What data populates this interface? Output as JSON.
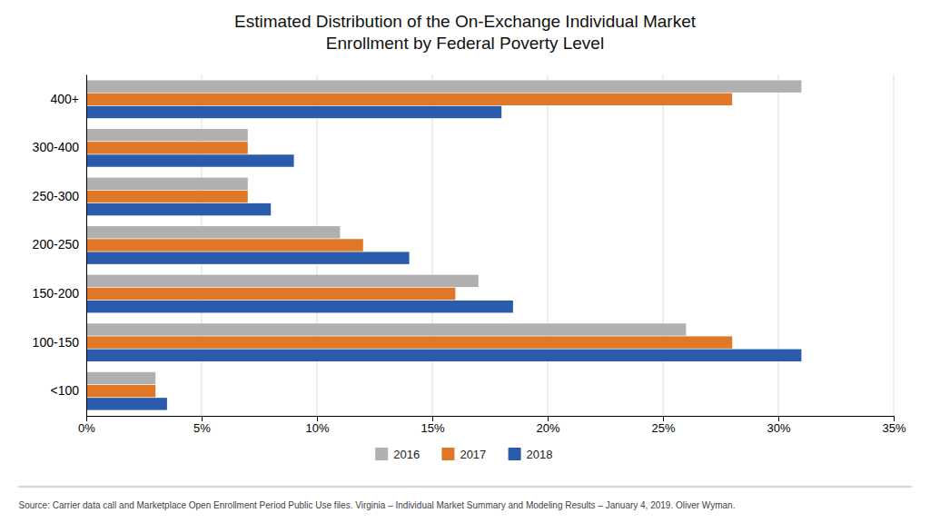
{
  "chart_data": {
    "type": "bar",
    "orientation": "horizontal",
    "title": "Estimated Distribution of the On-Exchange Individual Market\nEnrollment by Federal Poverty Level",
    "categories": [
      "400+",
      "300-400",
      "250-300",
      "200-250",
      "150-200",
      "100-150",
      "<100"
    ],
    "series": [
      {
        "name": "2016",
        "color": "#B0B0B0",
        "values": [
          31.0,
          7.0,
          7.0,
          11.0,
          17.0,
          26.0,
          3.0
        ]
      },
      {
        "name": "2017",
        "color": "#E07828",
        "values": [
          28.0,
          7.0,
          7.0,
          12.0,
          16.0,
          28.0,
          3.0
        ]
      },
      {
        "name": "2018",
        "color": "#2B5BAD",
        "values": [
          18.0,
          9.0,
          8.0,
          14.0,
          18.5,
          31.0,
          3.5
        ]
      }
    ],
    "xlim": [
      0,
      35
    ],
    "xticks": [
      {
        "value": 0,
        "label": "0%"
      },
      {
        "value": 5,
        "label": "5%"
      },
      {
        "value": 10,
        "label": "10%"
      },
      {
        "value": 15,
        "label": "15%"
      },
      {
        "value": 20,
        "label": "20%"
      },
      {
        "value": 25,
        "label": "25%"
      },
      {
        "value": 30,
        "label": "30%"
      },
      {
        "value": 35,
        "label": "35%"
      }
    ],
    "grid": true,
    "legend": "bottom",
    "annotations": [
      "Source:  Carrier data call and Marketplace Open Enrollment Period Public Use files.  Virginia – Individual Market Summary and Modeling Results – January 4, 2019.  Oliver Wyman."
    ]
  }
}
